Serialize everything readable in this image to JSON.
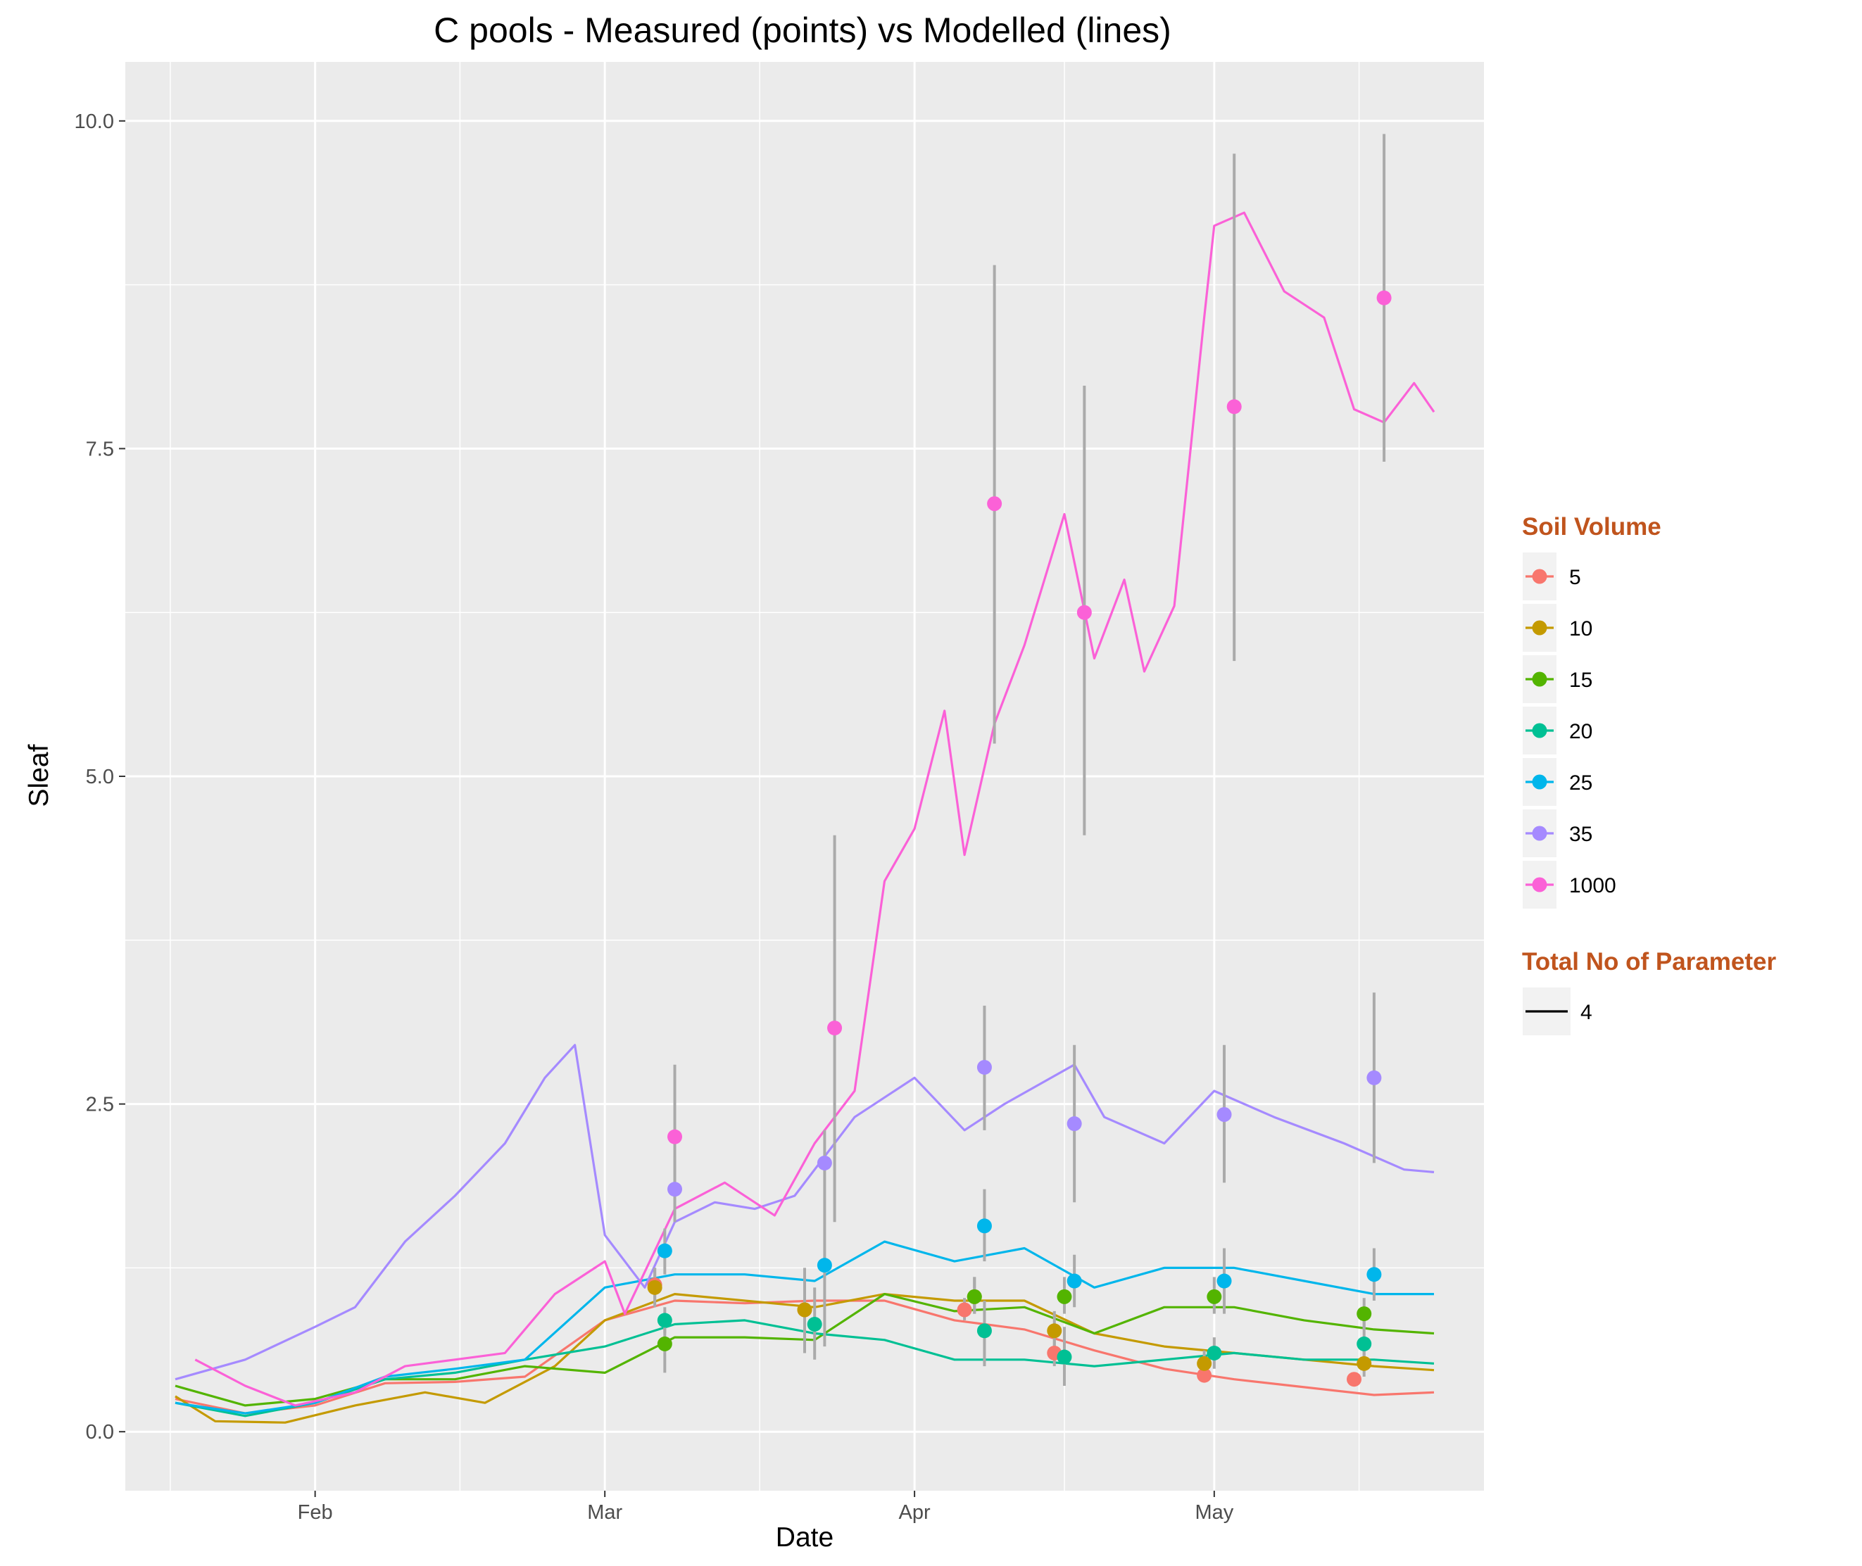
{
  "chart_data": {
    "type": "line",
    "title": "C pools - Measured (points) vs Modelled (lines)",
    "xlabel": "Date",
    "ylabel": "Sleaf",
    "x_ticks": [
      {
        "date": "2016-02-01",
        "label": "Feb"
      },
      {
        "date": "2016-03-01",
        "label": "Mar"
      },
      {
        "date": "2016-04-01",
        "label": "Apr"
      },
      {
        "date": "2016-05-01",
        "label": "May"
      }
    ],
    "xlim": [
      "2016-01-13",
      "2016-05-28"
    ],
    "y_ticks": [
      0,
      2.5,
      5,
      7.5,
      10
    ],
    "y_tick_labels": [
      "0.0",
      "2.5",
      "5.0",
      "7.5",
      "10.0"
    ],
    "ylim": [
      -0.45,
      10.45
    ],
    "grid": true,
    "legend_position": "right",
    "legend": {
      "color_title": "Soil Volume",
      "linetype_title": "Total No of Parameter",
      "linetype_entries": [
        "4"
      ]
    },
    "series": [
      {
        "name": "5",
        "color": "#F8766D",
        "line": [
          [
            "2016-01-18",
            0.25
          ],
          [
            "2016-01-25",
            0.14
          ],
          [
            "2016-02-01",
            0.2
          ],
          [
            "2016-02-08",
            0.37
          ],
          [
            "2016-02-15",
            0.38
          ],
          [
            "2016-02-22",
            0.42
          ],
          [
            "2016-03-01",
            0.85
          ],
          [
            "2016-03-08",
            1.0
          ],
          [
            "2016-03-15",
            0.98
          ],
          [
            "2016-03-22",
            1.0
          ],
          [
            "2016-03-29",
            1.0
          ],
          [
            "2016-04-05",
            0.85
          ],
          [
            "2016-04-12",
            0.78
          ],
          [
            "2016-04-19",
            0.62
          ],
          [
            "2016-04-26",
            0.48
          ],
          [
            "2016-05-03",
            0.4
          ],
          [
            "2016-05-10",
            0.34
          ],
          [
            "2016-05-17",
            0.28
          ],
          [
            "2016-05-23",
            0.3
          ]
        ],
        "points": [
          {
            "date": "2016-03-06",
            "y": 1.12,
            "ymin": 1.0,
            "ymax": 1.25
          },
          {
            "date": "2016-03-21",
            "y": 0.93,
            "ymin": 0.85,
            "ymax": 1.02
          },
          {
            "date": "2016-04-06",
            "y": 0.93,
            "ymin": 0.85,
            "ymax": 1.02
          },
          {
            "date": "2016-04-15",
            "y": 0.6,
            "ymin": 0.5,
            "ymax": 0.7
          },
          {
            "date": "2016-04-30",
            "y": 0.43,
            "ymin": 0.38,
            "ymax": 0.48
          },
          {
            "date": "2016-05-15",
            "y": 0.4,
            "ymin": 0.35,
            "ymax": 0.45
          }
        ]
      },
      {
        "name": "10",
        "color": "#C49A00",
        "line": [
          [
            "2016-01-18",
            0.27
          ],
          [
            "2016-01-22",
            0.08
          ],
          [
            "2016-01-29",
            0.07
          ],
          [
            "2016-02-05",
            0.2
          ],
          [
            "2016-02-12",
            0.3
          ],
          [
            "2016-02-18",
            0.22
          ],
          [
            "2016-02-25",
            0.5
          ],
          [
            "2016-03-01",
            0.85
          ],
          [
            "2016-03-08",
            1.05
          ],
          [
            "2016-03-15",
            1.0
          ],
          [
            "2016-03-22",
            0.95
          ],
          [
            "2016-03-29",
            1.05
          ],
          [
            "2016-04-05",
            1.0
          ],
          [
            "2016-04-12",
            1.0
          ],
          [
            "2016-04-19",
            0.75
          ],
          [
            "2016-04-26",
            0.65
          ],
          [
            "2016-05-03",
            0.6
          ],
          [
            "2016-05-10",
            0.55
          ],
          [
            "2016-05-17",
            0.5
          ],
          [
            "2016-05-23",
            0.47
          ]
        ],
        "points": [
          {
            "date": "2016-03-06",
            "y": 1.1,
            "ymin": 0.95,
            "ymax": 1.25
          },
          {
            "date": "2016-03-21",
            "y": 0.93,
            "ymin": 0.6,
            "ymax": 1.25
          },
          {
            "date": "2016-04-07",
            "y": 1.03,
            "ymin": 0.9,
            "ymax": 1.18
          },
          {
            "date": "2016-04-15",
            "y": 0.77,
            "ymin": 0.6,
            "ymax": 0.92
          },
          {
            "date": "2016-04-30",
            "y": 0.52,
            "ymin": 0.4,
            "ymax": 0.62
          },
          {
            "date": "2016-05-16",
            "y": 0.52,
            "ymin": 0.42,
            "ymax": 0.62
          }
        ]
      },
      {
        "name": "15",
        "color": "#53B400",
        "line": [
          [
            "2016-01-18",
            0.35
          ],
          [
            "2016-01-25",
            0.2
          ],
          [
            "2016-02-01",
            0.25
          ],
          [
            "2016-02-08",
            0.4
          ],
          [
            "2016-02-15",
            0.4
          ],
          [
            "2016-02-22",
            0.5
          ],
          [
            "2016-03-01",
            0.45
          ],
          [
            "2016-03-08",
            0.72
          ],
          [
            "2016-03-15",
            0.72
          ],
          [
            "2016-03-22",
            0.7
          ],
          [
            "2016-03-29",
            1.05
          ],
          [
            "2016-04-05",
            0.92
          ],
          [
            "2016-04-12",
            0.95
          ],
          [
            "2016-04-19",
            0.75
          ],
          [
            "2016-04-26",
            0.95
          ],
          [
            "2016-05-03",
            0.95
          ],
          [
            "2016-05-10",
            0.85
          ],
          [
            "2016-05-17",
            0.78
          ],
          [
            "2016-05-23",
            0.75
          ]
        ],
        "points": [
          {
            "date": "2016-03-07",
            "y": 0.67,
            "ymin": 0.45,
            "ymax": 0.9
          },
          {
            "date": "2016-04-07",
            "y": 1.03,
            "ymin": 0.9,
            "ymax": 1.18
          },
          {
            "date": "2016-04-16",
            "y": 1.03,
            "ymin": 0.9,
            "ymax": 1.18
          },
          {
            "date": "2016-05-01",
            "y": 1.03,
            "ymin": 0.9,
            "ymax": 1.18
          },
          {
            "date": "2016-05-16",
            "y": 0.9,
            "ymin": 0.78,
            "ymax": 1.02
          }
        ]
      },
      {
        "name": "20",
        "color": "#00C094",
        "line": [
          [
            "2016-01-18",
            0.22
          ],
          [
            "2016-01-25",
            0.12
          ],
          [
            "2016-02-01",
            0.22
          ],
          [
            "2016-02-08",
            0.4
          ],
          [
            "2016-02-15",
            0.45
          ],
          [
            "2016-02-22",
            0.55
          ],
          [
            "2016-03-01",
            0.65
          ],
          [
            "2016-03-08",
            0.82
          ],
          [
            "2016-03-15",
            0.85
          ],
          [
            "2016-03-22",
            0.75
          ],
          [
            "2016-03-29",
            0.7
          ],
          [
            "2016-04-05",
            0.55
          ],
          [
            "2016-04-12",
            0.55
          ],
          [
            "2016-04-19",
            0.5
          ],
          [
            "2016-04-26",
            0.55
          ],
          [
            "2016-05-03",
            0.6
          ],
          [
            "2016-05-10",
            0.55
          ],
          [
            "2016-05-17",
            0.55
          ],
          [
            "2016-05-23",
            0.52
          ]
        ],
        "points": [
          {
            "date": "2016-03-07",
            "y": 0.85,
            "ymin": 0.75,
            "ymax": 0.95
          },
          {
            "date": "2016-03-22",
            "y": 0.82,
            "ymin": 0.55,
            "ymax": 1.1
          },
          {
            "date": "2016-04-08",
            "y": 0.77,
            "ymin": 0.5,
            "ymax": 1.0
          },
          {
            "date": "2016-04-16",
            "y": 0.57,
            "ymin": 0.35,
            "ymax": 0.8
          },
          {
            "date": "2016-05-01",
            "y": 0.6,
            "ymin": 0.48,
            "ymax": 0.72
          },
          {
            "date": "2016-05-16",
            "y": 0.67,
            "ymin": 0.5,
            "ymax": 0.85
          }
        ]
      },
      {
        "name": "25",
        "color": "#00B6EB",
        "line": [
          [
            "2016-01-18",
            0.22
          ],
          [
            "2016-01-25",
            0.14
          ],
          [
            "2016-02-01",
            0.22
          ],
          [
            "2016-02-08",
            0.42
          ],
          [
            "2016-02-15",
            0.48
          ],
          [
            "2016-02-22",
            0.55
          ],
          [
            "2016-03-01",
            1.1
          ],
          [
            "2016-03-08",
            1.2
          ],
          [
            "2016-03-15",
            1.2
          ],
          [
            "2016-03-22",
            1.15
          ],
          [
            "2016-03-29",
            1.45
          ],
          [
            "2016-04-05",
            1.3
          ],
          [
            "2016-04-12",
            1.4
          ],
          [
            "2016-04-19",
            1.1
          ],
          [
            "2016-04-26",
            1.25
          ],
          [
            "2016-05-03",
            1.25
          ],
          [
            "2016-05-10",
            1.15
          ],
          [
            "2016-05-17",
            1.05
          ],
          [
            "2016-05-23",
            1.05
          ]
        ],
        "points": [
          {
            "date": "2016-03-07",
            "y": 1.38,
            "ymin": 1.2,
            "ymax": 1.55
          },
          {
            "date": "2016-03-23",
            "y": 1.27,
            "ymin": 0.65,
            "ymax": 1.8
          },
          {
            "date": "2016-04-08",
            "y": 1.57,
            "ymin": 1.3,
            "ymax": 1.85
          },
          {
            "date": "2016-04-17",
            "y": 1.15,
            "ymin": 0.95,
            "ymax": 1.35
          },
          {
            "date": "2016-05-02",
            "y": 1.15,
            "ymin": 0.9,
            "ymax": 1.4
          },
          {
            "date": "2016-05-17",
            "y": 1.2,
            "ymin": 1.0,
            "ymax": 1.4
          }
        ]
      },
      {
        "name": "35",
        "color": "#A58AFF",
        "line": [
          [
            "2016-01-18",
            0.4
          ],
          [
            "2016-01-25",
            0.55
          ],
          [
            "2016-02-01",
            0.8
          ],
          [
            "2016-02-05",
            0.95
          ],
          [
            "2016-02-10",
            1.45
          ],
          [
            "2016-02-15",
            1.8
          ],
          [
            "2016-02-20",
            2.2
          ],
          [
            "2016-02-24",
            2.7
          ],
          [
            "2016-02-27",
            2.95
          ],
          [
            "2016-03-01",
            1.5
          ],
          [
            "2016-03-05",
            1.1
          ],
          [
            "2016-03-08",
            1.6
          ],
          [
            "2016-03-12",
            1.75
          ],
          [
            "2016-03-16",
            1.7
          ],
          [
            "2016-03-20",
            1.8
          ],
          [
            "2016-03-26",
            2.4
          ],
          [
            "2016-04-01",
            2.7
          ],
          [
            "2016-04-06",
            2.3
          ],
          [
            "2016-04-10",
            2.5
          ],
          [
            "2016-04-17",
            2.8
          ],
          [
            "2016-04-20",
            2.4
          ],
          [
            "2016-04-26",
            2.2
          ],
          [
            "2016-05-01",
            2.6
          ],
          [
            "2016-05-07",
            2.4
          ],
          [
            "2016-05-14",
            2.2
          ],
          [
            "2016-05-20",
            2.0
          ],
          [
            "2016-05-23",
            1.98
          ]
        ],
        "points": [
          {
            "date": "2016-03-08",
            "y": 1.85,
            "ymin": 1.6,
            "ymax": 2.1
          },
          {
            "date": "2016-03-23",
            "y": 2.05,
            "ymin": 1.8,
            "ymax": 2.3
          },
          {
            "date": "2016-04-08",
            "y": 2.78,
            "ymin": 2.3,
            "ymax": 3.25
          },
          {
            "date": "2016-04-17",
            "y": 2.35,
            "ymin": 1.75,
            "ymax": 2.95
          },
          {
            "date": "2016-05-02",
            "y": 2.42,
            "ymin": 1.9,
            "ymax": 2.95
          },
          {
            "date": "2016-05-17",
            "y": 2.7,
            "ymin": 2.05,
            "ymax": 3.35
          }
        ]
      },
      {
        "name": "1000",
        "color": "#FB61D7",
        "line": [
          [
            "2016-01-20",
            0.55
          ],
          [
            "2016-01-25",
            0.35
          ],
          [
            "2016-01-30",
            0.2
          ],
          [
            "2016-02-05",
            0.3
          ],
          [
            "2016-02-10",
            0.5
          ],
          [
            "2016-02-15",
            0.55
          ],
          [
            "2016-02-20",
            0.6
          ],
          [
            "2016-02-25",
            1.05
          ],
          [
            "2016-03-01",
            1.3
          ],
          [
            "2016-03-03",
            0.9
          ],
          [
            "2016-03-08",
            1.7
          ],
          [
            "2016-03-13",
            1.9
          ],
          [
            "2016-03-18",
            1.65
          ],
          [
            "2016-03-22",
            2.2
          ],
          [
            "2016-03-26",
            2.6
          ],
          [
            "2016-03-29",
            4.2
          ],
          [
            "2016-04-01",
            4.6
          ],
          [
            "2016-04-04",
            5.5
          ],
          [
            "2016-04-06",
            4.4
          ],
          [
            "2016-04-09",
            5.4
          ],
          [
            "2016-04-12",
            6.0
          ],
          [
            "2016-04-16",
            7.0
          ],
          [
            "2016-04-19",
            5.9
          ],
          [
            "2016-04-22",
            6.5
          ],
          [
            "2016-04-24",
            5.8
          ],
          [
            "2016-04-27",
            6.3
          ],
          [
            "2016-04-30",
            8.5
          ],
          [
            "2016-05-01",
            9.2
          ],
          [
            "2016-05-04",
            9.3
          ],
          [
            "2016-05-08",
            8.7
          ],
          [
            "2016-05-12",
            8.5
          ],
          [
            "2016-05-15",
            7.8
          ],
          [
            "2016-05-18",
            7.7
          ],
          [
            "2016-05-21",
            8.0
          ],
          [
            "2016-05-23",
            7.78
          ]
        ],
        "points": [
          {
            "date": "2016-03-08",
            "y": 2.25,
            "ymin": 1.7,
            "ymax": 2.8
          },
          {
            "date": "2016-03-24",
            "y": 3.08,
            "ymin": 1.6,
            "ymax": 4.55
          },
          {
            "date": "2016-04-09",
            "y": 7.08,
            "ymin": 5.25,
            "ymax": 8.9
          },
          {
            "date": "2016-04-18",
            "y": 6.25,
            "ymin": 4.55,
            "ymax": 7.98
          },
          {
            "date": "2016-05-03",
            "y": 7.82,
            "ymin": 5.88,
            "ymax": 9.75
          },
          {
            "date": "2016-05-18",
            "y": 8.65,
            "ymin": 7.4,
            "ymax": 9.9
          }
        ]
      }
    ]
  }
}
